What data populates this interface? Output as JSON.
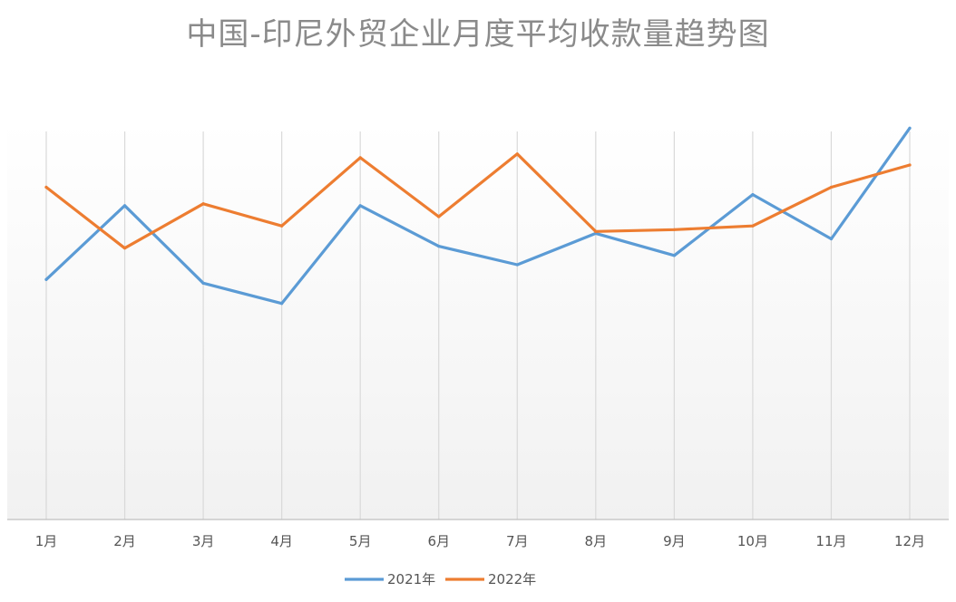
{
  "chart_data": {
    "type": "line",
    "title": "中国-印尼外贸企业月度平均收款量趋势图",
    "xlabel": "",
    "ylabel": "",
    "categories": [
      "1月",
      "2月",
      "3月",
      "4月",
      "5月",
      "6月",
      "7月",
      "8月",
      "9月",
      "10月",
      "11月",
      "12月"
    ],
    "series": [
      {
        "name": "2021年",
        "color": "#5b9bd5",
        "values": [
          65,
          85,
          64,
          58.5,
          85,
          74,
          69,
          77.5,
          71.5,
          88,
          76,
          106
        ]
      },
      {
        "name": "2022年",
        "color": "#ed7d31",
        "values": [
          90,
          73.5,
          85.5,
          79.5,
          98,
          82,
          99,
          78,
          78.5,
          79.5,
          90,
          96
        ]
      }
    ],
    "ylim": [
      0,
      110
    ],
    "grid": "vertical",
    "legend": "bottom"
  }
}
